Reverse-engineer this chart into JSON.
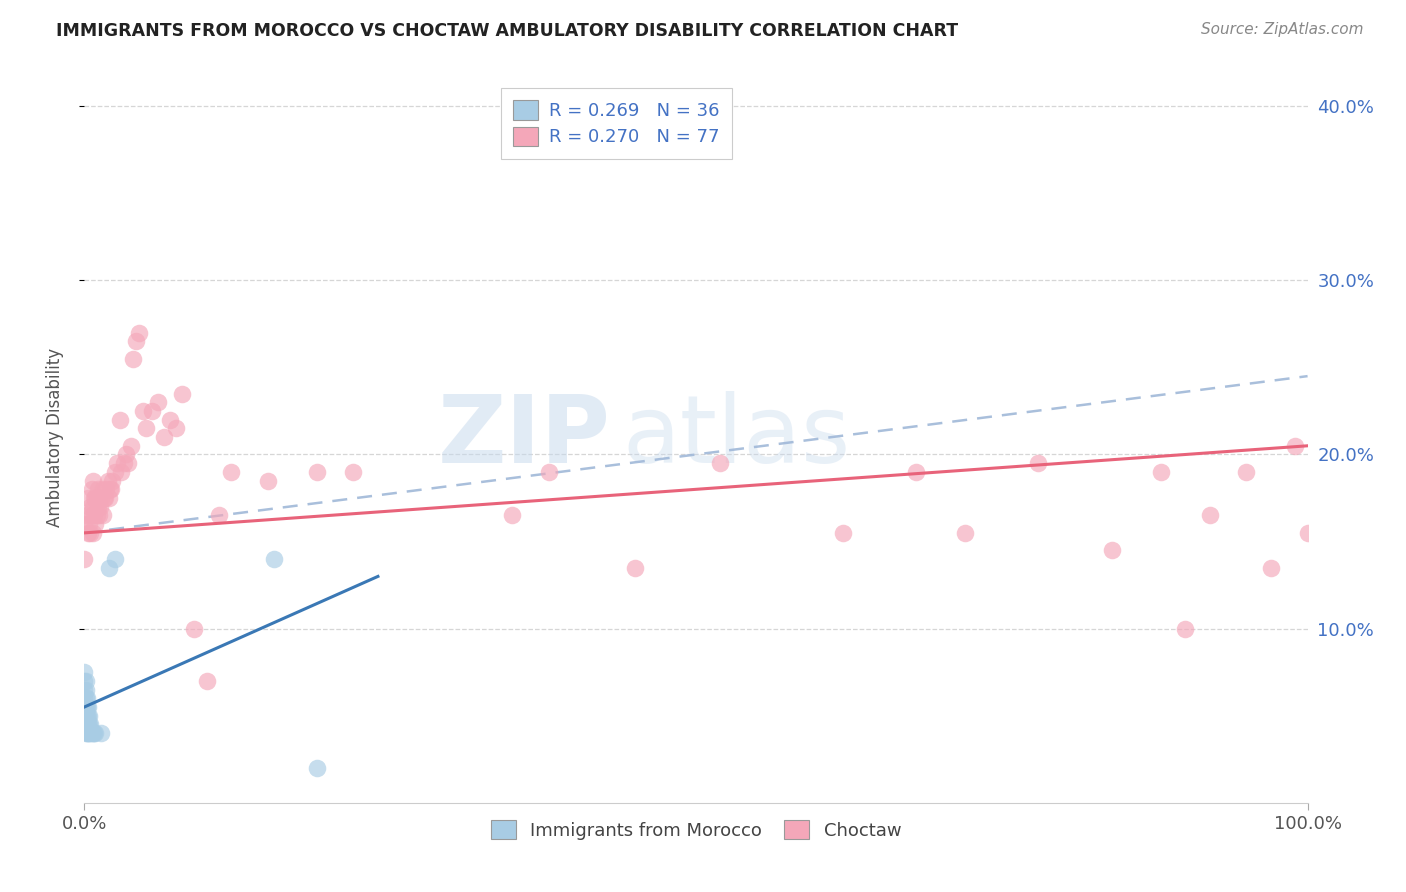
{
  "title": "IMMIGRANTS FROM MOROCCO VS CHOCTAW AMBULATORY DISABILITY CORRELATION CHART",
  "source": "Source: ZipAtlas.com",
  "ylabel": "Ambulatory Disability",
  "xlim": [
    0.0,
    1.0
  ],
  "ylim": [
    0.0,
    0.42
  ],
  "y_tick_vals": [
    0.1,
    0.2,
    0.3,
    0.4
  ],
  "y_tick_labels": [
    "10.0%",
    "20.0%",
    "30.0%",
    "40.0%"
  ],
  "x_tick_vals": [
    0.0,
    1.0
  ],
  "x_tick_labels": [
    "0.0%",
    "100.0%"
  ],
  "legend_r1": "R = 0.269",
  "legend_n1": "N = 36",
  "legend_r2": "R = 0.270",
  "legend_n2": "N = 77",
  "legend_label1": "Immigrants from Morocco",
  "legend_label2": "Choctaw",
  "color_blue": "#a8cce4",
  "color_pink": "#f4a7b9",
  "color_blue_line": "#3a78b5",
  "color_pink_line": "#e8637a",
  "color_dash": "#a0b8d8",
  "background_color": "#ffffff",
  "blue_x": [
    0.0,
    0.0,
    0.0,
    0.0,
    0.0,
    0.0,
    0.001,
    0.001,
    0.001,
    0.001,
    0.001,
    0.001,
    0.001,
    0.002,
    0.002,
    0.002,
    0.002,
    0.002,
    0.003,
    0.003,
    0.003,
    0.003,
    0.004,
    0.004,
    0.004,
    0.005,
    0.005,
    0.006,
    0.007,
    0.008,
    0.009,
    0.014,
    0.02,
    0.025,
    0.155,
    0.19
  ],
  "blue_y": [
    0.05,
    0.055,
    0.06,
    0.065,
    0.07,
    0.075,
    0.04,
    0.045,
    0.05,
    0.055,
    0.06,
    0.065,
    0.07,
    0.04,
    0.045,
    0.05,
    0.055,
    0.06,
    0.04,
    0.045,
    0.05,
    0.055,
    0.04,
    0.045,
    0.05,
    0.04,
    0.045,
    0.04,
    0.04,
    0.04,
    0.04,
    0.04,
    0.135,
    0.14,
    0.14,
    0.02
  ],
  "pink_x": [
    0.0,
    0.0,
    0.002,
    0.003,
    0.003,
    0.004,
    0.005,
    0.005,
    0.006,
    0.006,
    0.007,
    0.007,
    0.007,
    0.008,
    0.008,
    0.009,
    0.009,
    0.01,
    0.01,
    0.011,
    0.011,
    0.012,
    0.012,
    0.013,
    0.014,
    0.015,
    0.015,
    0.016,
    0.017,
    0.018,
    0.019,
    0.02,
    0.021,
    0.022,
    0.023,
    0.025,
    0.027,
    0.029,
    0.03,
    0.032,
    0.034,
    0.036,
    0.038,
    0.04,
    0.042,
    0.045,
    0.048,
    0.05,
    0.055,
    0.06,
    0.065,
    0.07,
    0.075,
    0.08,
    0.09,
    0.1,
    0.11,
    0.12,
    0.15,
    0.19,
    0.22,
    0.35,
    0.38,
    0.45,
    0.52,
    0.62,
    0.68,
    0.72,
    0.78,
    0.84,
    0.88,
    0.9,
    0.92,
    0.95,
    0.97,
    0.99,
    1.0
  ],
  "pink_y": [
    0.14,
    0.16,
    0.165,
    0.155,
    0.175,
    0.16,
    0.155,
    0.17,
    0.165,
    0.18,
    0.155,
    0.17,
    0.185,
    0.165,
    0.175,
    0.16,
    0.175,
    0.165,
    0.175,
    0.17,
    0.18,
    0.165,
    0.175,
    0.17,
    0.175,
    0.165,
    0.18,
    0.175,
    0.175,
    0.18,
    0.185,
    0.175,
    0.18,
    0.18,
    0.185,
    0.19,
    0.195,
    0.22,
    0.19,
    0.195,
    0.2,
    0.195,
    0.205,
    0.255,
    0.265,
    0.27,
    0.225,
    0.215,
    0.225,
    0.23,
    0.21,
    0.22,
    0.215,
    0.235,
    0.1,
    0.07,
    0.165,
    0.19,
    0.185,
    0.19,
    0.19,
    0.165,
    0.19,
    0.135,
    0.195,
    0.155,
    0.19,
    0.155,
    0.195,
    0.145,
    0.19,
    0.1,
    0.165,
    0.19,
    0.135,
    0.205,
    0.155
  ],
  "blue_line_x": [
    0.0,
    0.24
  ],
  "blue_line_y": [
    0.055,
    0.13
  ],
  "pink_line_x": [
    0.0,
    1.0
  ],
  "pink_line_y": [
    0.155,
    0.205
  ],
  "dash_line_x": [
    0.0,
    1.0
  ],
  "dash_line_y": [
    0.155,
    0.245
  ]
}
